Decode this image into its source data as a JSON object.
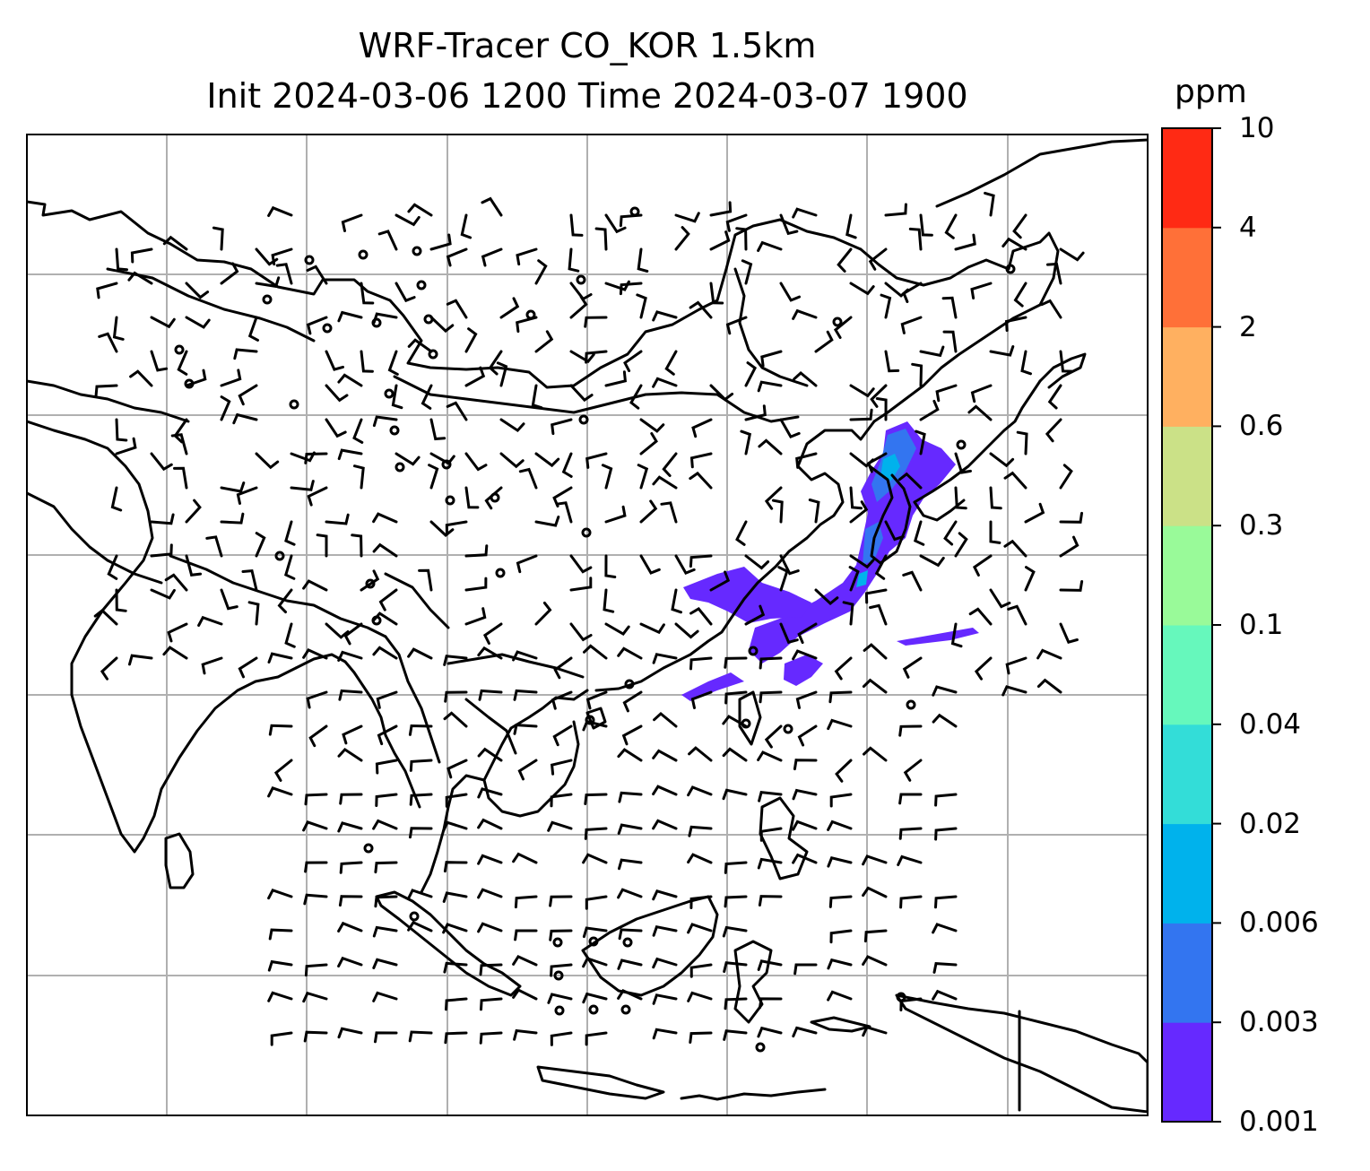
{
  "title": {
    "line1": "WRF-Tracer CO_KOR 1.5km",
    "line2": "Init 2024-03-06 1200 Time 2024-03-07 1900"
  },
  "colorbar": {
    "unit": "ppm",
    "levels": [
      "0.001",
      "0.003",
      "0.006",
      "0.02",
      "0.04",
      "0.1",
      "0.3",
      "0.6",
      "2",
      "4",
      "10"
    ],
    "colors": [
      "#6629ff",
      "#3375f0",
      "#00b2ec",
      "#33ddd8",
      "#66f8bc",
      "#99fa99",
      "#cbe187",
      "#ffb060",
      "#ff7038",
      "#ff2a14"
    ]
  },
  "map": {
    "gridlines": true,
    "coastline_color": "#000000",
    "grid_color": "#b0b0b0",
    "plume_colors": [
      "#6629ff",
      "#3375f0",
      "#00b2ec"
    ]
  }
}
